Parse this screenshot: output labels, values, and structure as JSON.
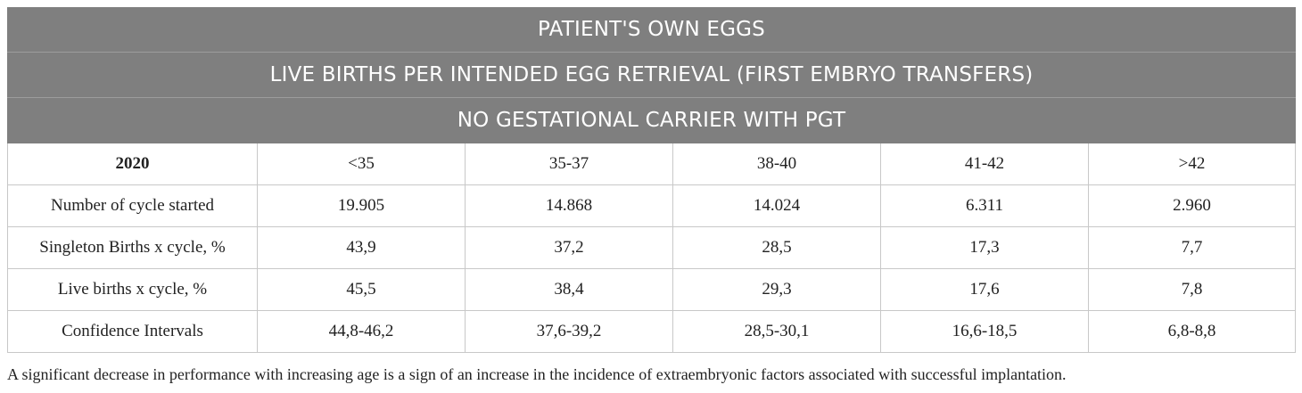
{
  "titles": [
    "PATIENT'S OWN EGGS",
    "LIVE BIRTHS PER INTENDED EGG RETRIEVAL (FIRST EMBRYO TRANSFERS)",
    "NO GESTATIONAL CARRIER WITH PGT"
  ],
  "header": [
    "2020",
    "<35",
    "35-37",
    "38-40",
    "41-42",
    ">42"
  ],
  "rows": [
    [
      "Number of cycle started",
      "19.905",
      "14.868",
      "14.024",
      "6.311",
      "2.960"
    ],
    [
      "Singleton Births x cycle, %",
      "43,9",
      "37,2",
      "28,5",
      "17,3",
      "7,7"
    ],
    [
      "Live births x cycle, %",
      "45,5",
      "38,4",
      "29,3",
      "17,6",
      "7,8"
    ],
    [
      "Confidence Intervals",
      "44,8-46,2",
      "37,6-39,2",
      "28,5-30,1",
      "16,6-18,5",
      "6,8-8,8"
    ]
  ],
  "footnote": "A significant decrease in performance with increasing age is a sign of an increase in the incidence of extraembryonic factors associated with successful implantation."
}
